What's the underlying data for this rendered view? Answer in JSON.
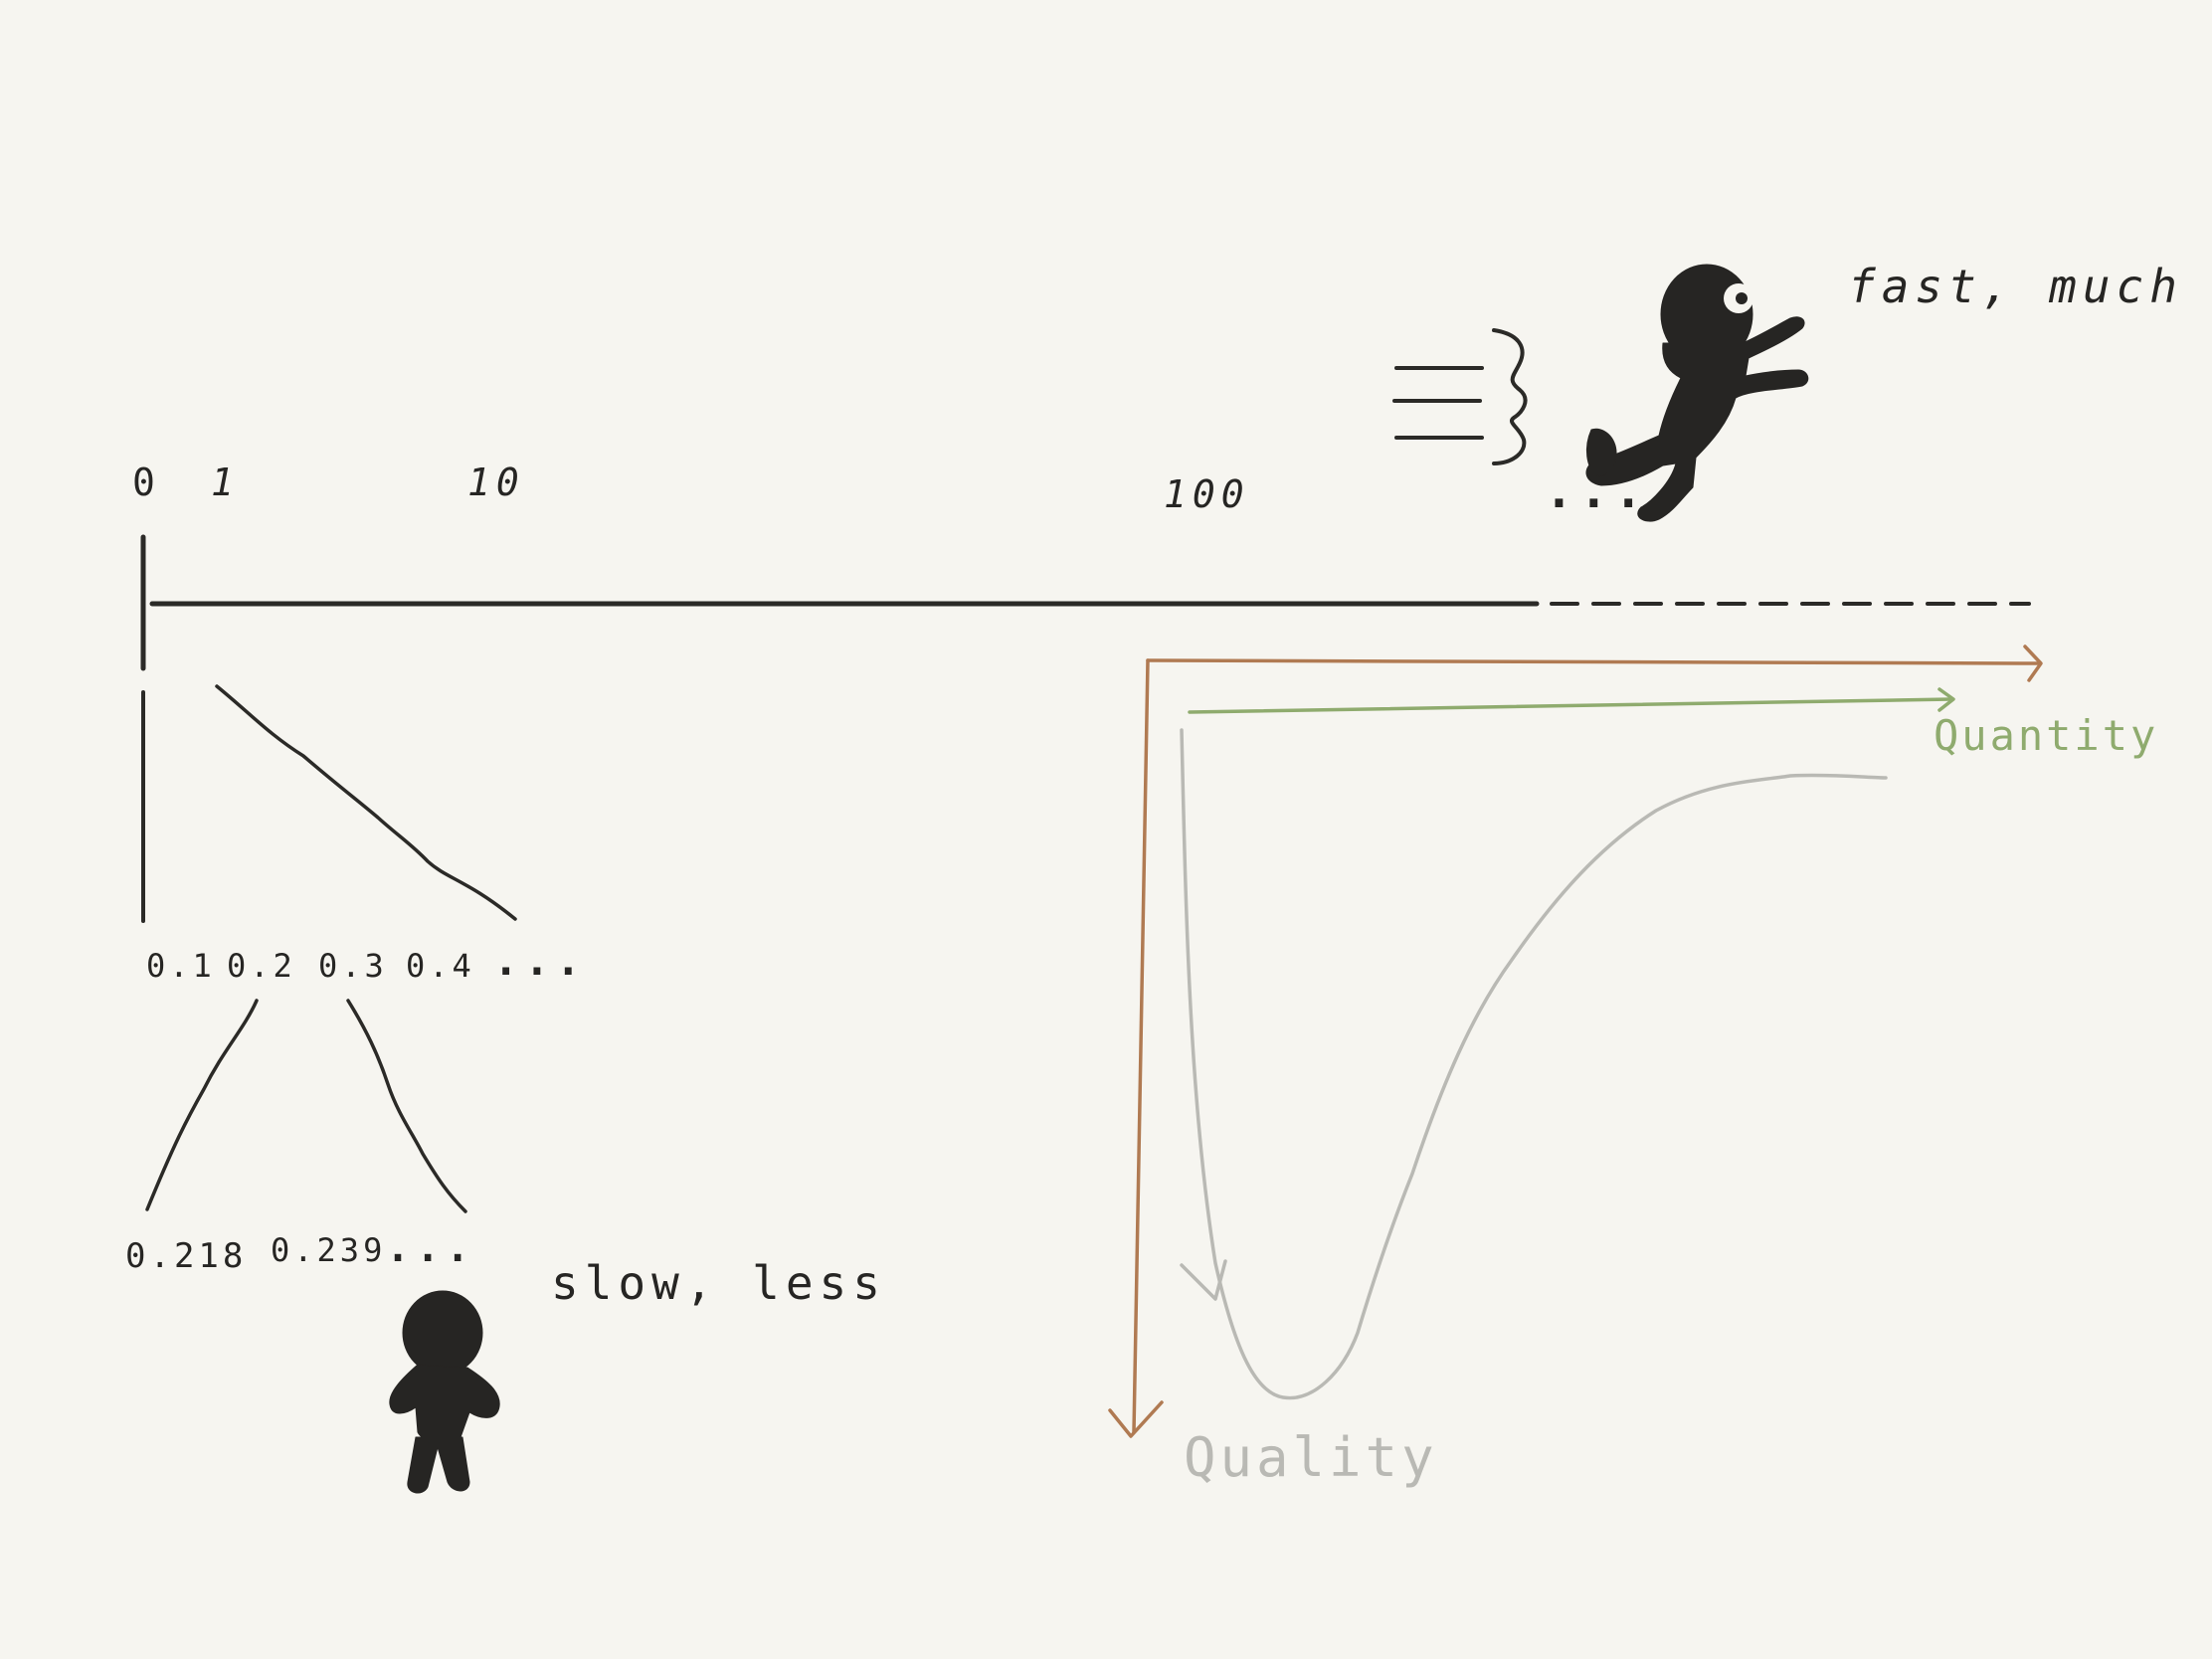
{
  "scale": {
    "tick_labels": [
      "0",
      "1",
      "10",
      "100",
      "..."
    ]
  },
  "zoom_level_1": {
    "labels": [
      "0.1",
      "0.2",
      "0.3",
      "0.4",
      "..."
    ]
  },
  "zoom_level_2": {
    "labels": [
      "0.218",
      "0.239",
      "..."
    ]
  },
  "fast_label": "fast, much",
  "slow_label": "slow, less",
  "quantity_label": "Quantity",
  "quality_label": "Quality",
  "colors": {
    "background": "#f6f5f0",
    "ink": "#262523",
    "quality_axis": "#b07a52",
    "quantity_axis": "#8fab6e",
    "curve": "#b9b9b4"
  }
}
